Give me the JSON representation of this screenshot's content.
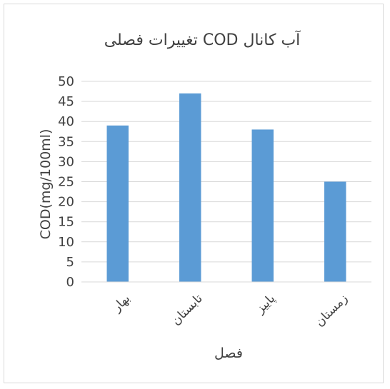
{
  "chart_data": {
    "type": "bar",
    "title": "تغییرات فصلی COD آب کانال",
    "xlabel": "فصل",
    "ylabel": "COD(mg/100ml)",
    "categories": [
      "بهار",
      "تابستان",
      "پاییز",
      "زمستان"
    ],
    "values": [
      39,
      47,
      38,
      25
    ],
    "ylim": [
      0,
      50
    ],
    "yticks": [
      0,
      5,
      10,
      15,
      20,
      25,
      30,
      35,
      40,
      45,
      50
    ],
    "grid": true,
    "legend": "none",
    "bar_color": "#5b9bd5",
    "grid_color": "#d9d9d9"
  }
}
